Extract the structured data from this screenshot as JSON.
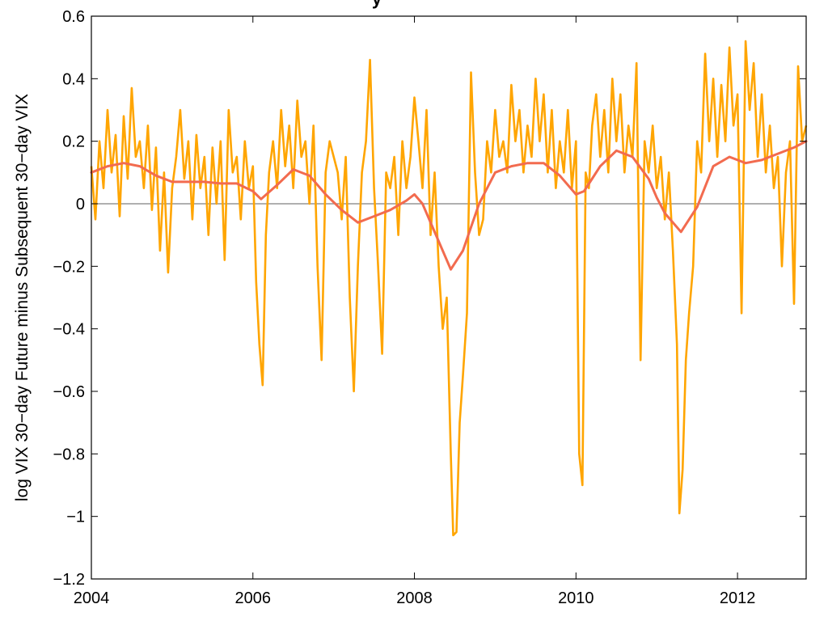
{
  "chart_data": {
    "type": "line",
    "title_visible_fragment": "y",
    "xlabel": "",
    "ylabel": "log VIX 30−day Future minus Subsequent 30−day VIX",
    "xlim": [
      2004,
      2012.85
    ],
    "ylim": [
      -1.2,
      0.6
    ],
    "x_ticks": [
      2004,
      2006,
      2008,
      2010,
      2012
    ],
    "x_tick_labels": [
      "2004",
      "2006",
      "2008",
      "2010",
      "2012"
    ],
    "y_ticks": [
      0.6,
      0.4,
      0.2,
      0,
      -0.2,
      -0.4,
      -0.6,
      -0.8,
      -1,
      -1.2
    ],
    "y_tick_labels": [
      "0.6",
      "0.4",
      "0.2",
      "0",
      "−0.2",
      "−0.4",
      "−0.6",
      "−0.8",
      "−1",
      "−1.2"
    ],
    "zero_line": true,
    "grid": false,
    "colors": {
      "raw": "#FFA500",
      "smooth": "#F26B4F",
      "zero": "#808080",
      "axes": "#000000"
    },
    "series": [
      {
        "x": [
          2004.0,
          2004.05,
          2004.1,
          2004.15,
          2004.2,
          2004.25,
          2004.3,
          2004.35,
          2004.4,
          2004.45,
          2004.5,
          2004.55,
          2004.6,
          2004.65,
          2004.7,
          2004.75,
          2004.8,
          2004.85,
          2004.9,
          2004.95,
          2005.0,
          2005.05,
          2005.1,
          2005.15,
          2005.2,
          2005.25,
          2005.3,
          2005.35,
          2005.4,
          2005.45,
          2005.5,
          2005.55,
          2005.6,
          2005.65,
          2005.7,
          2005.75,
          2005.8,
          2005.85,
          2005.9,
          2005.95,
          2006.0,
          2006.04,
          2006.08,
          2006.12,
          2006.16,
          2006.2,
          2006.25,
          2006.3,
          2006.35,
          2006.4,
          2006.45,
          2006.5,
          2006.55,
          2006.6,
          2006.65,
          2006.7,
          2006.75,
          2006.8,
          2006.85,
          2006.9,
          2006.95,
          2007.0,
          2007.05,
          2007.1,
          2007.15,
          2007.2,
          2007.25,
          2007.3,
          2007.35,
          2007.4,
          2007.45,
          2007.5,
          2007.55,
          2007.6,
          2007.65,
          2007.7,
          2007.75,
          2007.8,
          2007.85,
          2007.9,
          2007.95,
          2008.0,
          2008.05,
          2008.1,
          2008.15,
          2008.2,
          2008.25,
          2008.3,
          2008.35,
          2008.4,
          2008.45,
          2008.48,
          2008.52,
          2008.56,
          2008.6,
          2008.65,
          2008.7,
          2008.75,
          2008.8,
          2008.85,
          2008.9,
          2008.95,
          2009.0,
          2009.05,
          2009.1,
          2009.15,
          2009.2,
          2009.25,
          2009.3,
          2009.35,
          2009.4,
          2009.45,
          2009.5,
          2009.55,
          2009.6,
          2009.65,
          2009.7,
          2009.75,
          2009.8,
          2009.85,
          2009.9,
          2009.95,
          2010.0,
          2010.04,
          2010.08,
          2010.12,
          2010.16,
          2010.2,
          2010.25,
          2010.3,
          2010.35,
          2010.4,
          2010.45,
          2010.5,
          2010.55,
          2010.6,
          2010.65,
          2010.7,
          2010.75,
          2010.8,
          2010.85,
          2010.9,
          2010.95,
          2011.0,
          2011.05,
          2011.1,
          2011.15,
          2011.2,
          2011.25,
          2011.28,
          2011.32,
          2011.36,
          2011.4,
          2011.45,
          2011.5,
          2011.55,
          2011.6,
          2011.65,
          2011.7,
          2011.75,
          2011.8,
          2011.85,
          2011.9,
          2011.95,
          2012.0,
          2012.05,
          2012.1,
          2012.15,
          2012.2,
          2012.25,
          2012.3,
          2012.35,
          2012.4,
          2012.45,
          2012.5,
          2012.55,
          2012.6,
          2012.65,
          2012.7,
          2012.75,
          2012.8,
          2012.85
        ],
        "y": [
          0.12,
          -0.05,
          0.2,
          0.05,
          0.3,
          0.1,
          0.22,
          -0.04,
          0.28,
          0.08,
          0.37,
          0.15,
          0.2,
          0.05,
          0.25,
          -0.02,
          0.18,
          -0.15,
          0.1,
          -0.22,
          0.05,
          0.15,
          0.3,
          0.08,
          0.2,
          -0.05,
          0.22,
          0.05,
          0.15,
          -0.1,
          0.18,
          0.0,
          0.2,
          -0.18,
          0.3,
          0.1,
          0.15,
          -0.05,
          0.2,
          0.05,
          0.12,
          -0.25,
          -0.45,
          -0.58,
          -0.1,
          0.1,
          0.2,
          0.05,
          0.3,
          0.12,
          0.25,
          0.05,
          0.33,
          0.15,
          0.2,
          0.0,
          0.25,
          -0.2,
          -0.5,
          0.1,
          0.2,
          0.15,
          0.1,
          -0.05,
          0.15,
          -0.3,
          -0.6,
          -0.2,
          0.1,
          0.2,
          0.46,
          0.05,
          -0.2,
          -0.48,
          0.1,
          0.05,
          0.15,
          -0.1,
          0.2,
          0.05,
          0.15,
          0.34,
          0.2,
          0.05,
          0.3,
          -0.1,
          0.1,
          -0.2,
          -0.4,
          -0.3,
          -0.8,
          -1.06,
          -1.05,
          -0.7,
          -0.55,
          -0.35,
          0.42,
          0.1,
          -0.1,
          -0.05,
          0.2,
          0.1,
          0.3,
          0.15,
          0.2,
          0.1,
          0.38,
          0.2,
          0.3,
          0.1,
          0.25,
          0.15,
          0.4,
          0.2,
          0.35,
          0.1,
          0.3,
          0.05,
          0.2,
          0.1,
          0.3,
          0.05,
          0.2,
          -0.8,
          -0.9,
          0.1,
          0.05,
          0.25,
          0.35,
          0.15,
          0.3,
          0.1,
          0.4,
          0.2,
          0.35,
          0.1,
          0.25,
          0.15,
          0.45,
          -0.5,
          0.2,
          0.1,
          0.25,
          0.05,
          0.15,
          -0.05,
          0.1,
          -0.15,
          -0.45,
          -0.99,
          -0.85,
          -0.5,
          -0.35,
          -0.2,
          0.2,
          0.1,
          0.48,
          0.2,
          0.4,
          0.15,
          0.38,
          0.2,
          0.5,
          0.25,
          0.35,
          -0.35,
          0.52,
          0.3,
          0.45,
          0.15,
          0.35,
          0.1,
          0.25,
          0.05,
          0.15,
          -0.2,
          0.1,
          0.2,
          -0.32,
          0.44,
          0.2,
          0.25
        ]
      },
      {
        "x": [
          2004.0,
          2004.2,
          2004.4,
          2004.6,
          2004.8,
          2005.0,
          2005.2,
          2005.4,
          2005.6,
          2005.8,
          2006.0,
          2006.1,
          2006.3,
          2006.5,
          2006.7,
          2006.9,
          2007.1,
          2007.3,
          2007.5,
          2007.7,
          2007.9,
          2008.0,
          2008.1,
          2008.3,
          2008.45,
          2008.6,
          2008.8,
          2009.0,
          2009.2,
          2009.4,
          2009.6,
          2009.8,
          2010.0,
          2010.1,
          2010.3,
          2010.5,
          2010.7,
          2010.9,
          2011.0,
          2011.1,
          2011.3,
          2011.5,
          2011.7,
          2011.9,
          2012.1,
          2012.3,
          2012.5,
          2012.7,
          2012.85
        ],
        "y": [
          0.1,
          0.12,
          0.13,
          0.12,
          0.09,
          0.07,
          0.07,
          0.07,
          0.065,
          0.065,
          0.04,
          0.015,
          0.06,
          0.11,
          0.09,
          0.03,
          -0.02,
          -0.06,
          -0.04,
          -0.02,
          0.01,
          0.03,
          0.0,
          -0.12,
          -0.21,
          -0.15,
          0.0,
          0.1,
          0.12,
          0.13,
          0.13,
          0.09,
          0.03,
          0.04,
          0.12,
          0.17,
          0.15,
          0.08,
          0.02,
          -0.03,
          -0.09,
          -0.01,
          0.12,
          0.15,
          0.13,
          0.14,
          0.16,
          0.18,
          0.2
        ]
      }
    ]
  }
}
